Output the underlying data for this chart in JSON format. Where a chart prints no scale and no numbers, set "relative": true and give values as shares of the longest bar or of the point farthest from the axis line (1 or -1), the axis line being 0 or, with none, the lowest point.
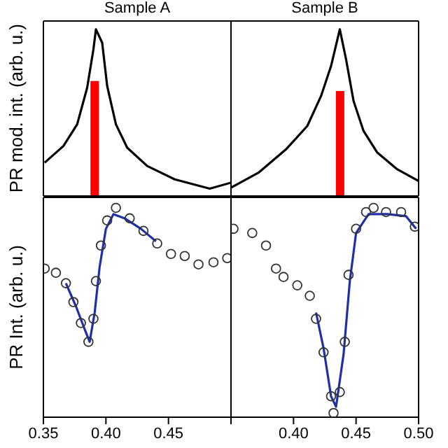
{
  "chart_data": [
    {
      "type": "line",
      "title": "Sample A",
      "ylabel": "PR mod. int. (arb. u.)",
      "relative": true,
      "xlim": [
        0.35,
        0.5
      ],
      "xticks": [
        0.35,
        0.4,
        0.45
      ],
      "tick_labels": false,
      "series": [
        {
          "color": "#000000",
          "x": [
            0.351,
            0.366,
            0.377,
            0.385,
            0.39,
            0.392,
            0.397,
            0.401,
            0.408,
            0.417,
            0.433,
            0.455,
            0.483,
            0.5
          ],
          "values": [
            0.2,
            0.3,
            0.43,
            0.65,
            0.88,
            1,
            0.92,
            0.66,
            0.43,
            0.29,
            0.18,
            0.1,
            0.044,
            0.08
          ]
        },
        {
          "type": "bar",
          "color": "#ff0000",
          "x": [
            0.391
          ],
          "values": [
            0.69
          ]
        }
      ]
    },
    {
      "type": "line",
      "title": "Sample B",
      "relative": true,
      "xlim": [
        0.35,
        0.5
      ],
      "xticks": [
        0.35,
        0.4,
        0.45,
        0.5
      ],
      "tick_labels": false,
      "series": [
        {
          "color": "#000000",
          "x": [
            0.35,
            0.372,
            0.394,
            0.411,
            0.422,
            0.43,
            0.437,
            0.442,
            0.448,
            0.456,
            0.467,
            0.483,
            0.5
          ],
          "values": [
            0.05,
            0.14,
            0.28,
            0.42,
            0.6,
            0.78,
            1,
            0.82,
            0.57,
            0.39,
            0.26,
            0.16,
            0.09
          ]
        },
        {
          "type": "bar",
          "color": "#ff0000",
          "x": [
            0.437
          ],
          "values": [
            0.63
          ]
        }
      ]
    },
    {
      "type": "scatter",
      "ylabel": "PR Int. (arb. u.)",
      "relative": true,
      "xlim": [
        0.35,
        0.5
      ],
      "xticks": [
        0.35,
        {
          "value": 0.4,
          "label": "0.40"
        },
        0.45,
        {
          "value": 0.5,
          "label": null
        }
      ],
      "series": [
        {
          "color": "#333333",
          "marker": "circle",
          "x": [
            0.351,
            0.36,
            0.368,
            0.374,
            0.38,
            0.386,
            0.39,
            0.392,
            0.396,
            0.401,
            0.408,
            0.419,
            0.43,
            0.441,
            0.452,
            0.463,
            0.474,
            0.486,
            0.497
          ],
          "values": [
            0.71,
            0.69,
            0.64,
            0.55,
            0.45,
            0.36,
            0.47,
            0.65,
            0.82,
            0.94,
            1,
            0.95,
            0.89,
            0.83,
            0.78,
            0.77,
            0.73,
            0.74,
            0.76
          ]
        },
        {
          "type": "line",
          "color": "#1f2fa8",
          "x": [
            0.368,
            0.376,
            0.383,
            0.387,
            0.391,
            0.395,
            0.4,
            0.406,
            0.415,
            0.428,
            0.44
          ],
          "values": [
            0.64,
            0.53,
            0.42,
            0.36,
            0.5,
            0.72,
            0.9,
            0.97,
            0.95,
            0.9,
            0.84
          ]
        }
      ]
    },
    {
      "type": "scatter",
      "relative": true,
      "xlim": [
        0.35,
        0.5
      ],
      "xticks": [
        {
          "value": 0.35,
          "label": null
        },
        {
          "value": 0.4,
          "label": "0.40"
        },
        0.45,
        {
          "value": 0.5,
          "label": "0.50"
        }
      ],
      "series": [
        {
          "color": "#333333",
          "marker": "circle",
          "x": [
            0.352,
            0.367,
            0.378,
            0.386,
            0.392,
            0.403,
            0.413,
            0.418,
            0.424,
            0.43,
            0.432,
            0.437,
            0.441,
            0.444,
            0.45,
            0.458,
            0.464,
            0.474,
            0.486,
            0.497
          ],
          "values": [
            0.9,
            0.88,
            0.82,
            0.71,
            0.67,
            0.63,
            0.58,
            0.47,
            0.31,
            0.1,
            0.02,
            0.12,
            0.36,
            0.68,
            0.9,
            0.98,
            1,
            0.98,
            0.98,
            0.91
          ]
        },
        {
          "type": "line",
          "color": "#1f2fa8",
          "x": [
            0.418,
            0.424,
            0.43,
            0.434,
            0.44,
            0.445,
            0.45,
            0.46,
            0.475,
            0.49,
            0.498
          ],
          "values": [
            0.5,
            0.33,
            0.1,
            0.05,
            0.3,
            0.65,
            0.88,
            0.97,
            0.97,
            0.96,
            0.9
          ]
        }
      ]
    }
  ]
}
